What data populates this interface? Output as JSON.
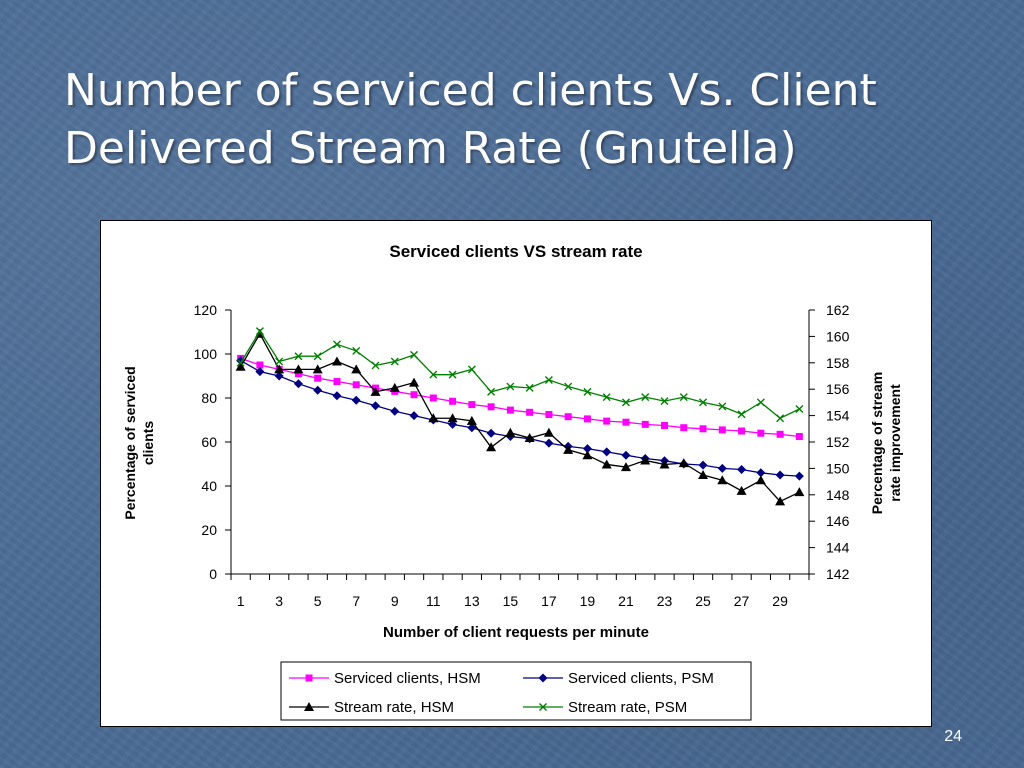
{
  "slide": {
    "title_line1": "Number of serviced clients Vs. Client",
    "title_line2": "Delivered Stream Rate (Gnutella)",
    "page_number": "24"
  },
  "chart_data": {
    "type": "line",
    "title": "Serviced clients VS stream rate",
    "xlabel": "Number of client requests per minute",
    "ylabel_left_line1": "Percentage of serviced",
    "ylabel_left_line2": "clients",
    "ylabel_right_line1": "Percentage of stream",
    "ylabel_right_line2": "rate improvement",
    "x": [
      1,
      2,
      3,
      4,
      5,
      6,
      7,
      8,
      9,
      10,
      11,
      12,
      13,
      14,
      15,
      16,
      17,
      18,
      19,
      20,
      21,
      22,
      23,
      24,
      25,
      26,
      27,
      28,
      29,
      30
    ],
    "x_tick_labels": [
      "1",
      "3",
      "5",
      "7",
      "9",
      "11",
      "13",
      "15",
      "17",
      "19",
      "21",
      "23",
      "25",
      "27",
      "29"
    ],
    "ylim_left": [
      0,
      120
    ],
    "yticks_left": [
      "0",
      "20",
      "40",
      "60",
      "80",
      "100",
      "120"
    ],
    "ylim_right": [
      142,
      162
    ],
    "yticks_right": [
      "142",
      "144",
      "146",
      "148",
      "150",
      "152",
      "154",
      "156",
      "158",
      "160",
      "162"
    ],
    "grid": false,
    "legend_position": "bottom",
    "series": [
      {
        "name": "Serviced clients, HSM",
        "axis": "left",
        "color": "#ff00ff",
        "marker": "square",
        "values": [
          98,
          95,
          93,
          91,
          89,
          87.5,
          86,
          84.5,
          83,
          81.5,
          80,
          78.5,
          77,
          76,
          74.5,
          73.5,
          72.5,
          71.5,
          70.5,
          69.5,
          69,
          68,
          67.5,
          66.5,
          66,
          65.5,
          65,
          64,
          63.5,
          62.5
        ]
      },
      {
        "name": "Serviced clients, PSM",
        "axis": "left",
        "color": "#000080",
        "marker": "diamond",
        "values": [
          97,
          92,
          90,
          86.5,
          83.5,
          81,
          79,
          76.5,
          74,
          72,
          70,
          68,
          66.5,
          64,
          62.5,
          61.5,
          59.5,
          58,
          57,
          55.5,
          54,
          52.5,
          51.5,
          50,
          49.5,
          48,
          47.5,
          46,
          45,
          44.5
        ]
      },
      {
        "name": "Stream rate, HSM",
        "axis": "right",
        "color": "#000000",
        "marker": "triangle",
        "values": [
          157.7,
          160.2,
          157.5,
          157.5,
          157.5,
          158.1,
          157.5,
          155.8,
          156.1,
          156.5,
          153.8,
          153.8,
          153.6,
          151.6,
          152.7,
          152.3,
          152.7,
          151.4,
          151,
          150.3,
          150.1,
          150.6,
          150.3,
          150.4,
          149.5,
          149.1,
          148.3,
          149.1,
          147.5,
          148.2
        ]
      },
      {
        "name": "Stream rate, PSM",
        "axis": "right",
        "color": "#008000",
        "marker": "x",
        "values": [
          158,
          160.4,
          158.1,
          158.5,
          158.5,
          159.4,
          158.9,
          157.8,
          158.1,
          158.6,
          157.1,
          157.1,
          157.5,
          155.8,
          156.2,
          156.1,
          156.7,
          156.2,
          155.8,
          155.4,
          155,
          155.4,
          155.1,
          155.4,
          155,
          154.7,
          154.1,
          155,
          153.8,
          154.5
        ]
      }
    ]
  }
}
